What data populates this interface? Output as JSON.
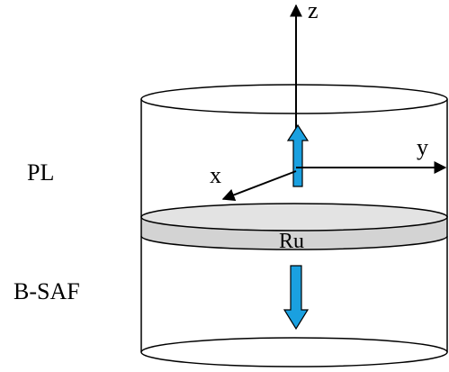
{
  "labels": {
    "pinned_layer": "PL",
    "bottom_layer": "B-SAF",
    "spacer": "Ru"
  },
  "axes": {
    "z": "z",
    "y": "y",
    "x": "x"
  },
  "colors": {
    "moment_arrow_fill": "#1aa0e0",
    "spacer_fill": "#d3d3d3",
    "outline": "#000000"
  },
  "moments": {
    "pinned_layer": "up",
    "bottom_layer": "down"
  }
}
